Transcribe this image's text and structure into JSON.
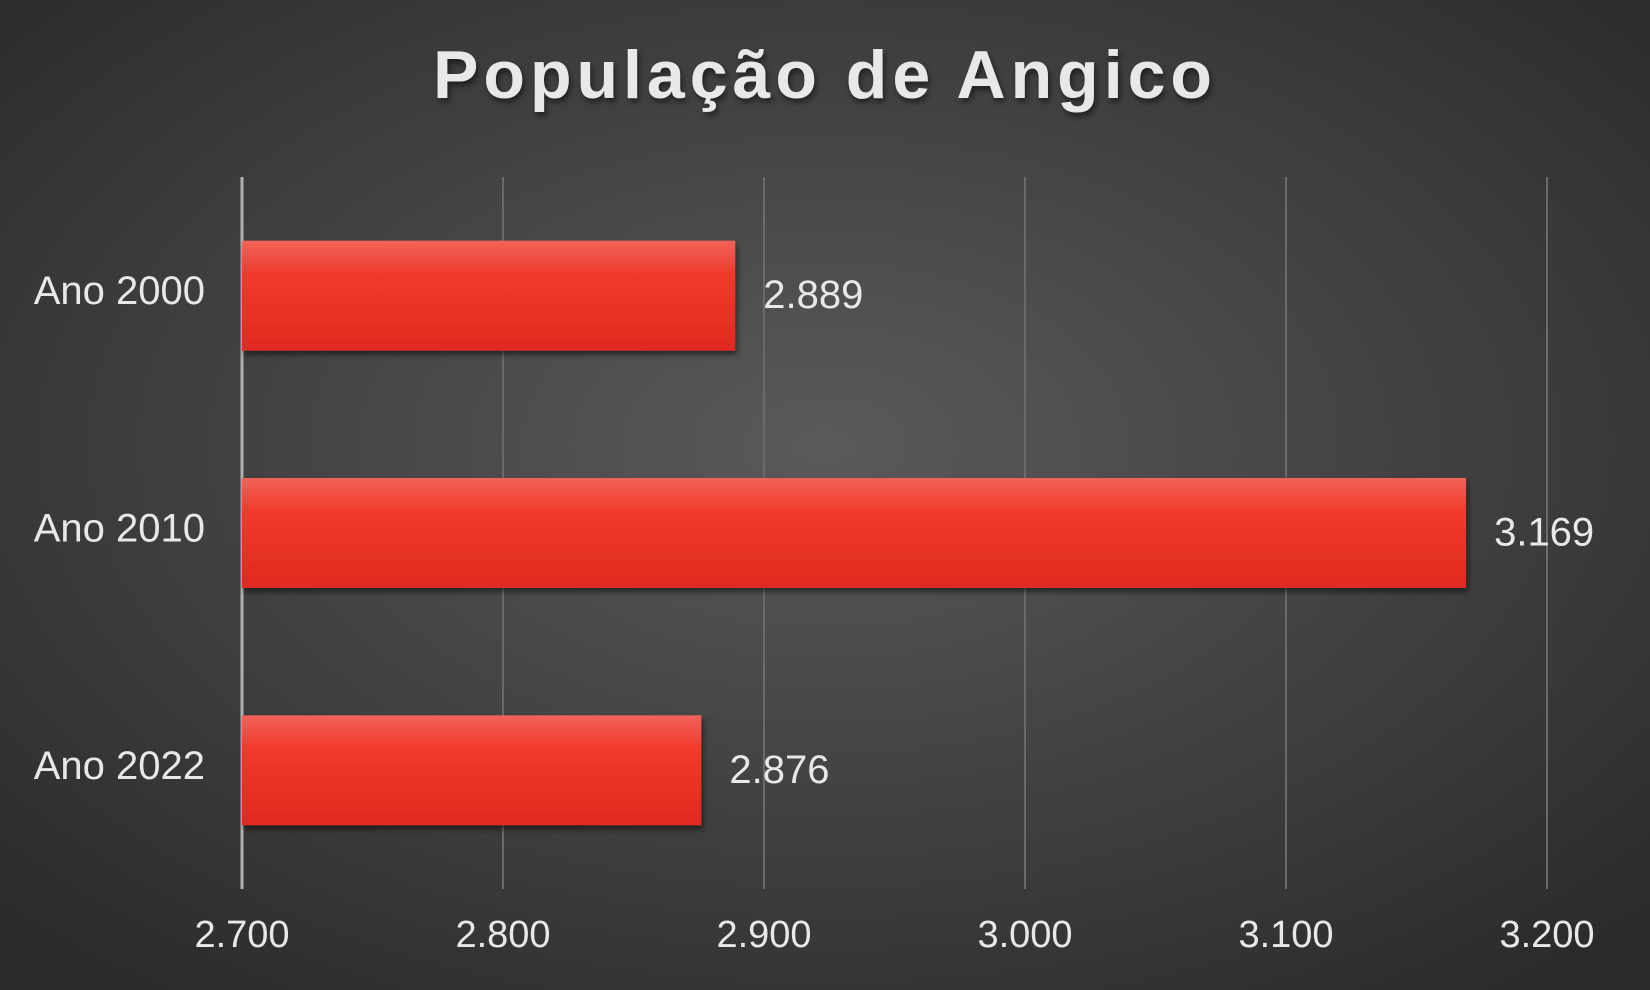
{
  "chart_data": {
    "type": "barh",
    "title": "População de Angico",
    "categories": [
      "Ano 2000",
      "Ano 2010",
      "Ano 2022"
    ],
    "values": [
      2889,
      3169,
      2876
    ],
    "value_labels": [
      "2.889",
      "3.169",
      "2.876"
    ],
    "color": "#ee3a2c",
    "xlim": [
      2700,
      3200
    ],
    "xticks": [
      {
        "value": 2700,
        "label": "2.700"
      },
      {
        "value": 2800,
        "label": "2.800"
      },
      {
        "value": 2900,
        "label": "2.900"
      },
      {
        "value": 3000,
        "label": "3.000"
      },
      {
        "value": 3100,
        "label": "3.100"
      },
      {
        "value": 3200,
        "label": "3.200"
      }
    ],
    "grid": true
  }
}
